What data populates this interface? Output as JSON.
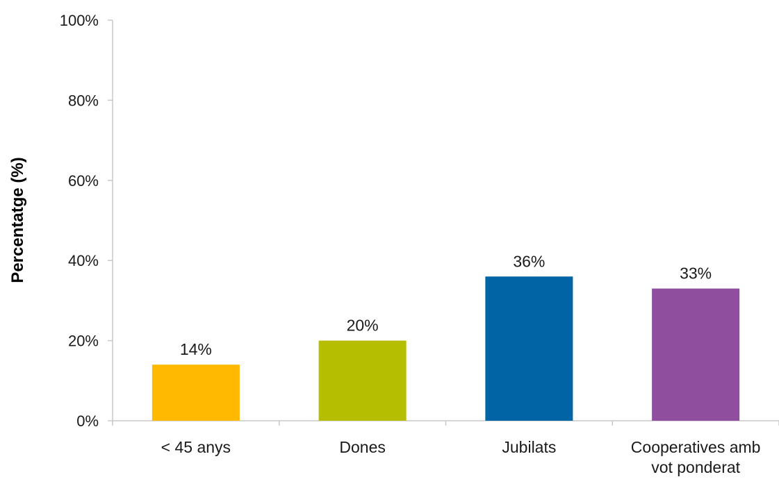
{
  "chart_data": {
    "type": "bar",
    "title": "",
    "xlabel": "",
    "ylabel": "Percentatge (%)",
    "categories": [
      [
        "< 45 anys"
      ],
      [
        "Dones"
      ],
      [
        "Jubilats"
      ],
      [
        "Cooperatives amb",
        "vot ponderat"
      ]
    ],
    "values": [
      14,
      20,
      36,
      33
    ],
    "value_labels": [
      "14%",
      "20%",
      "36%",
      "33%"
    ],
    "ylim": [
      0,
      100
    ],
    "yticks": [
      0,
      20,
      40,
      60,
      80,
      100
    ],
    "ytick_labels": [
      "0%",
      "20%",
      "40%",
      "60%",
      "80%",
      "100%"
    ],
    "colors": [
      "#FFB900",
      "#B5BE00",
      "#0064A5",
      "#8F4E9E"
    ],
    "grid": false,
    "legend": "none"
  }
}
